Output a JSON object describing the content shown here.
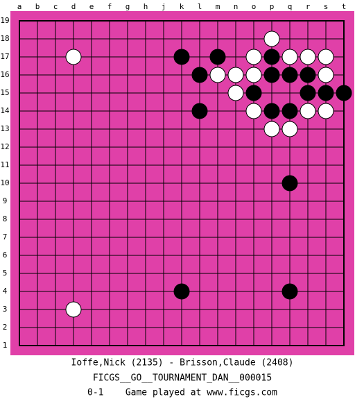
{
  "board": {
    "columns": [
      "a",
      "b",
      "c",
      "d",
      "e",
      "f",
      "g",
      "h",
      "j",
      "k",
      "l",
      "m",
      "n",
      "o",
      "p",
      "q",
      "r",
      "s",
      "t"
    ],
    "rows": [
      19,
      18,
      17,
      16,
      15,
      14,
      13,
      12,
      11,
      10,
      9,
      8,
      7,
      6,
      5,
      4,
      3,
      2,
      1
    ],
    "stones": [
      {
        "col": "p",
        "row": 18,
        "color": "white"
      },
      {
        "col": "d",
        "row": 17,
        "color": "white"
      },
      {
        "col": "k",
        "row": 17,
        "color": "black"
      },
      {
        "col": "m",
        "row": 17,
        "color": "black"
      },
      {
        "col": "o",
        "row": 17,
        "color": "white"
      },
      {
        "col": "p",
        "row": 17,
        "color": "black"
      },
      {
        "col": "q",
        "row": 17,
        "color": "white"
      },
      {
        "col": "r",
        "row": 17,
        "color": "white"
      },
      {
        "col": "s",
        "row": 17,
        "color": "white"
      },
      {
        "col": "l",
        "row": 16,
        "color": "black"
      },
      {
        "col": "m",
        "row": 16,
        "color": "white"
      },
      {
        "col": "n",
        "row": 16,
        "color": "white"
      },
      {
        "col": "o",
        "row": 16,
        "color": "white"
      },
      {
        "col": "p",
        "row": 16,
        "color": "black"
      },
      {
        "col": "q",
        "row": 16,
        "color": "black"
      },
      {
        "col": "r",
        "row": 16,
        "color": "black"
      },
      {
        "col": "s",
        "row": 16,
        "color": "white"
      },
      {
        "col": "n",
        "row": 15,
        "color": "white"
      },
      {
        "col": "o",
        "row": 15,
        "color": "black"
      },
      {
        "col": "r",
        "row": 15,
        "color": "black"
      },
      {
        "col": "s",
        "row": 15,
        "color": "black"
      },
      {
        "col": "t",
        "row": 15,
        "color": "black"
      },
      {
        "col": "l",
        "row": 14,
        "color": "black"
      },
      {
        "col": "o",
        "row": 14,
        "color": "white"
      },
      {
        "col": "p",
        "row": 14,
        "color": "black"
      },
      {
        "col": "q",
        "row": 14,
        "color": "black"
      },
      {
        "col": "r",
        "row": 14,
        "color": "white"
      },
      {
        "col": "s",
        "row": 14,
        "color": "white"
      },
      {
        "col": "p",
        "row": 13,
        "color": "white"
      },
      {
        "col": "q",
        "row": 13,
        "color": "white"
      },
      {
        "col": "q",
        "row": 10,
        "color": "black"
      },
      {
        "col": "k",
        "row": 4,
        "color": "black"
      },
      {
        "col": "q",
        "row": 4,
        "color": "black"
      },
      {
        "col": "d",
        "row": 3,
        "color": "white"
      }
    ]
  },
  "caption": {
    "players": "Ioffe,Nick (2135) - Brisson,Claude (2408)",
    "event": "FICGS__GO__TOURNAMENT_DAN__000015",
    "result_line": "0-1    Game played at www.ficgs.com"
  }
}
